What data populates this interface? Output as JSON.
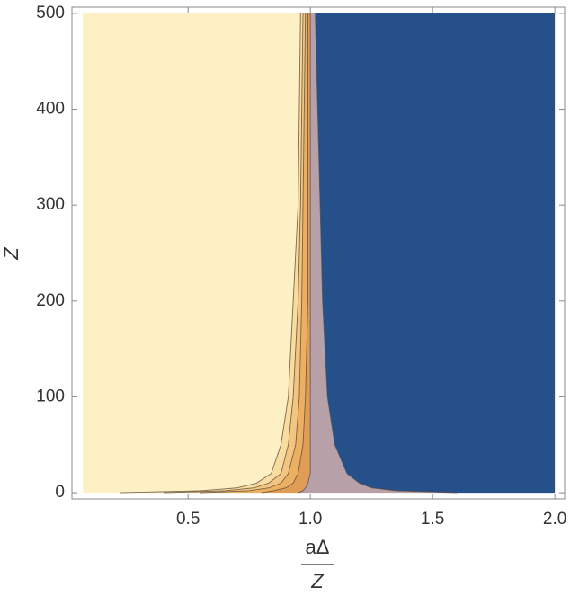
{
  "chart_data": {
    "type": "contour",
    "x_label": {
      "numerator": "aΔ",
      "denominator": "Z"
    },
    "y_label": "Z",
    "xlim": [
      0.025,
      2.04
    ],
    "ylim": [
      -6.5,
      506.5
    ],
    "xticks": [
      0.5,
      {
        "value": 1,
        "label": "1.0"
      },
      1.5,
      {
        "value": 2,
        "label": "2.0"
      }
    ],
    "yticks": [
      0,
      100,
      200,
      300,
      400,
      500
    ],
    "x_data_range": [
      0.07,
      2.0
    ],
    "left_color": "#fdf0c4",
    "right_color": "#26508a",
    "y": [
      0,
      2,
      5,
      10,
      20,
      50,
      100,
      200,
      300,
      400,
      500
    ],
    "series": [
      {
        "color": "#f8dca0",
        "values": [
          0.22,
          0.55,
          0.7,
          0.78,
          0.84,
          0.88,
          0.91,
          0.93,
          0.95,
          0.955,
          0.96
        ]
      },
      {
        "color": "#f2c680",
        "values": [
          0.4,
          0.65,
          0.77,
          0.83,
          0.88,
          0.91,
          0.93,
          0.95,
          0.96,
          0.965,
          0.97
        ]
      },
      {
        "color": "#ecb062",
        "values": [
          0.55,
          0.75,
          0.83,
          0.88,
          0.91,
          0.94,
          0.955,
          0.965,
          0.97,
          0.975,
          0.98
        ]
      },
      {
        "color": "#e19c55",
        "values": [
          0.8,
          0.85,
          0.9,
          0.93,
          0.95,
          0.97,
          0.98,
          0.99,
          0.99,
          0.99,
          0.99
        ]
      },
      {
        "color": "#b8a0a8",
        "values": [
          0.95,
          0.97,
          0.98,
          0.99,
          1.0,
          1.0,
          1.0,
          1.0,
          1.0,
          1.0,
          1.0
        ]
      },
      {
        "color": "#26508a",
        "values": [
          1.6,
          1.35,
          1.25,
          1.2,
          1.15,
          1.1,
          1.07,
          1.05,
          1.04,
          1.03,
          1.02
        ]
      }
    ]
  }
}
